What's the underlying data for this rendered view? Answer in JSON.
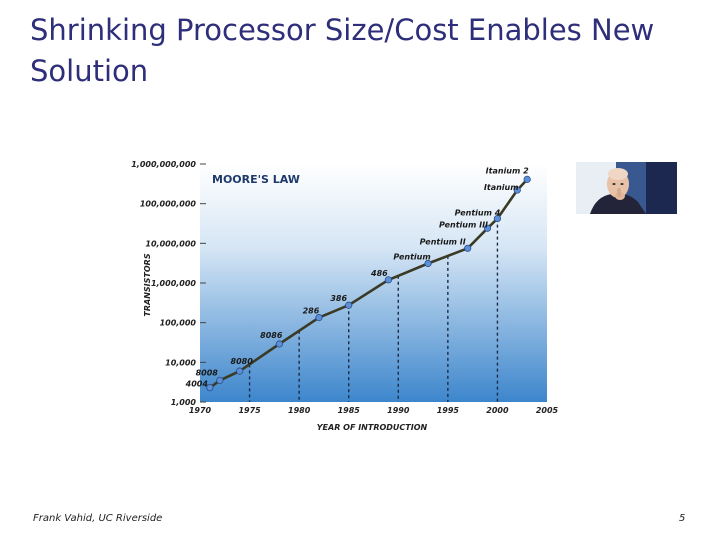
{
  "slide": {
    "title": "Shrinking Processor Size/Cost Enables New Solution",
    "footer_left": "Frank Vahid, UC Riverside",
    "page_number": "5"
  },
  "colors": {
    "title": "#2e2e7a",
    "plot_top": "#ffffff",
    "plot_bottom": "#2f7fc9",
    "curve": "#3b3a25",
    "points": "#5b8fd8",
    "chart_title": "#1e3a6a"
  },
  "chart_data": {
    "type": "line",
    "title": "MOORE'S LAW",
    "xlabel": "YEAR OF INTRODUCTION",
    "ylabel": "TRANSISTORS",
    "scale_y": "log",
    "xlim": [
      1970,
      2005
    ],
    "ylim": [
      1000,
      1000000000
    ],
    "x_ticks": [
      "1970",
      "1975",
      "1980",
      "1985",
      "1990",
      "1995",
      "2000",
      "2005"
    ],
    "y_ticks": [
      {
        "value": 1000,
        "label": "1,000"
      },
      {
        "value": 10000,
        "label": "10,000"
      },
      {
        "value": 100000,
        "label": "100,000"
      },
      {
        "value": 1000000,
        "label": "1,000,000"
      },
      {
        "value": 10000000,
        "label": "10,000,000"
      },
      {
        "value": 100000000,
        "label": "100,000,000"
      },
      {
        "value": 1000000000,
        "label": "1,000,000,000"
      }
    ],
    "dashed_year_lines": [
      1975,
      1980,
      1985,
      1990,
      1995,
      2000
    ],
    "points": [
      {
        "label": "4004",
        "x": 1971,
        "y": 2300
      },
      {
        "label": "8008",
        "x": 1972,
        "y": 3500
      },
      {
        "label": "8080",
        "x": 1974,
        "y": 6000
      },
      {
        "label": "8086",
        "x": 1978,
        "y": 29000
      },
      {
        "label": "286",
        "x": 1982,
        "y": 134000
      },
      {
        "label": "386",
        "x": 1985,
        "y": 275000
      },
      {
        "label": "486",
        "x": 1989,
        "y": 1200000
      },
      {
        "label": "Pentium",
        "x": 1993,
        "y": 3100000
      },
      {
        "label": "Pentium II",
        "x": 1997,
        "y": 7500000
      },
      {
        "label": "Pentium III",
        "x": 1999,
        "y": 24000000
      },
      {
        "label": "Pentium 4",
        "x": 2000,
        "y": 42000000
      },
      {
        "label": "Itanium",
        "x": 2002,
        "y": 220000000
      },
      {
        "label": "Itanium 2",
        "x": 2003,
        "y": 410000000
      }
    ],
    "grid": false,
    "legend": "none"
  }
}
